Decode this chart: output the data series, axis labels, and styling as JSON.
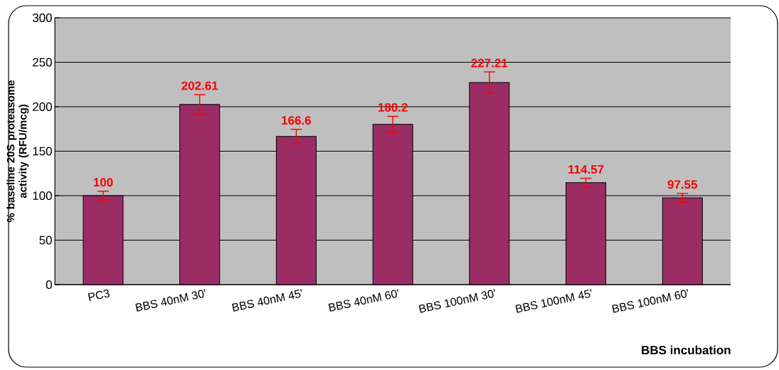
{
  "chart_data": {
    "type": "bar",
    "xlabel": "BBS incubation",
    "ylabel": "% baseline 20S proteasome activity (RFU/mcg)",
    "categories": [
      "PC3",
      "BBS 40nM 30'",
      "BBS 40nM 45'",
      "BBS 40nM 60'",
      "BBS 100nM 30'",
      "BBS 100nM 45'",
      "BBS 100nM 60'"
    ],
    "values": [
      100,
      202.61,
      166.6,
      180.2,
      227.21,
      114.57,
      97.55
    ],
    "errors": [
      5,
      11,
      8,
      9,
      12,
      5,
      5
    ],
    "color": "#9b2d64",
    "value_labels": [
      "100",
      "202.61",
      "166.6",
      "180.2",
      "227.21",
      "114.57",
      "97.55"
    ],
    "ylim": [
      0,
      300
    ],
    "yticks": [
      0,
      50,
      100,
      150,
      200,
      250,
      300
    ],
    "grid": "y"
  }
}
